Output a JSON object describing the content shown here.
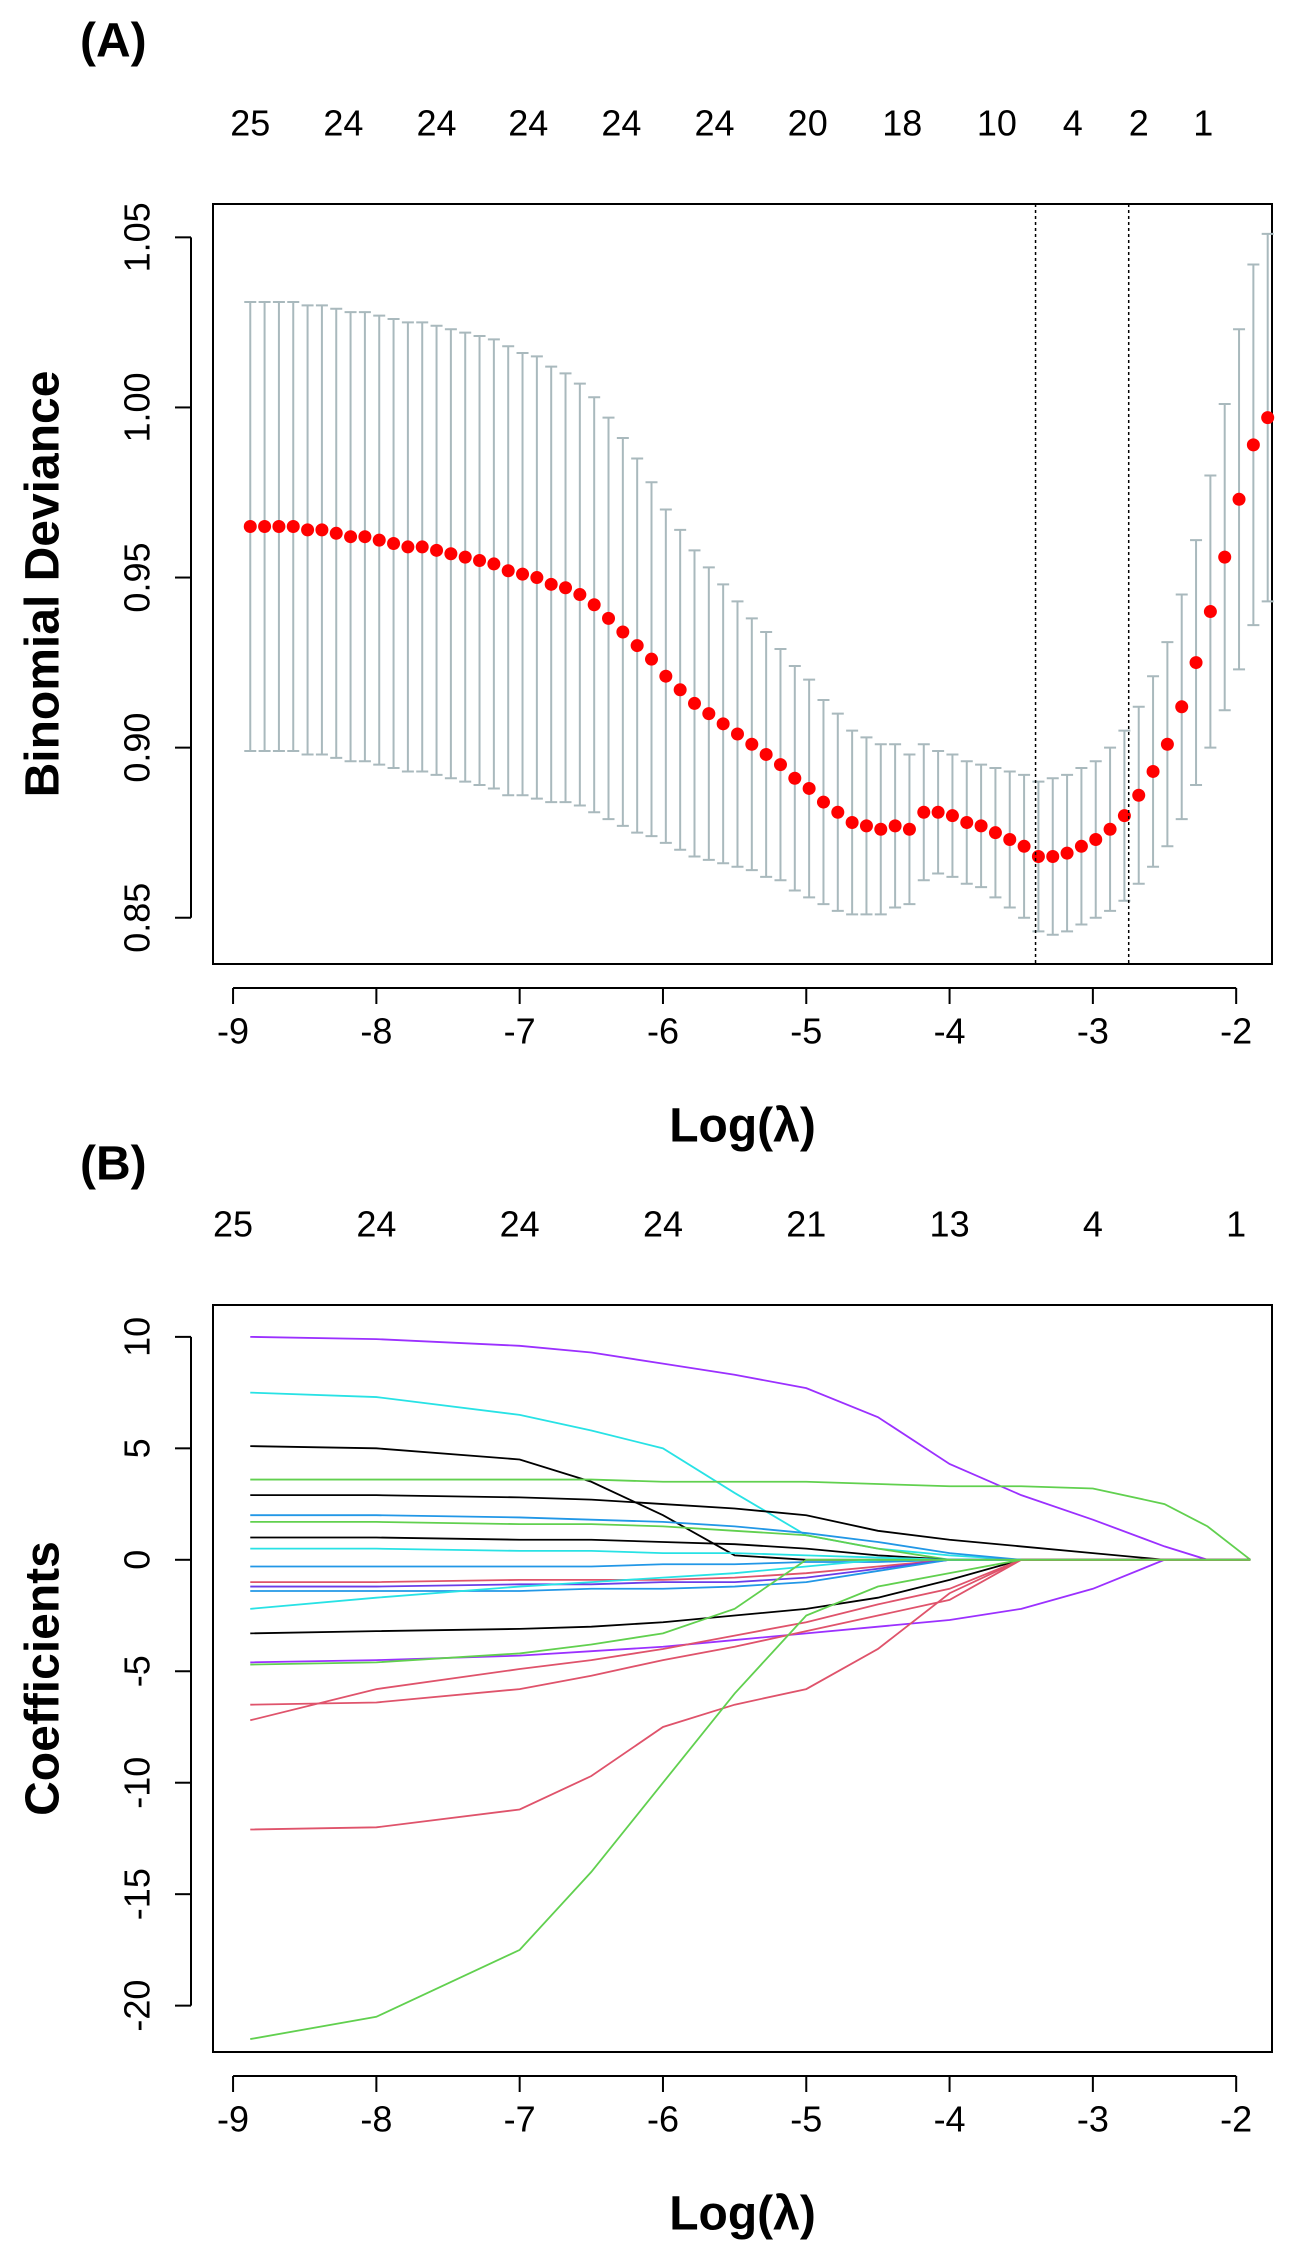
{
  "chart_data": [
    {
      "type": "errorbar",
      "panel_label": "(A)",
      "xlabel": "Log(λ)",
      "ylabel": "Binomial Deviance",
      "x": [
        -8.88,
        -8.78,
        -8.68,
        -8.58,
        -8.48,
        -8.38,
        -8.28,
        -8.18,
        -8.08,
        -7.98,
        -7.88,
        -7.78,
        -7.68,
        -7.58,
        -7.48,
        -7.38,
        -7.28,
        -7.18,
        -7.08,
        -6.98,
        -6.88,
        -6.78,
        -6.68,
        -6.58,
        -6.48,
        -6.38,
        -6.28,
        -6.18,
        -6.08,
        -5.98,
        -5.88,
        -5.78,
        -5.68,
        -5.58,
        -5.48,
        -5.38,
        -5.28,
        -5.18,
        -5.08,
        -4.98,
        -4.88,
        -4.78,
        -4.68,
        -4.58,
        -4.48,
        -4.38,
        -4.28,
        -4.18,
        -4.08,
        -3.98,
        -3.88,
        -3.78,
        -3.68,
        -3.58,
        -3.48,
        -3.38,
        -3.28,
        -3.18,
        -3.08,
        -2.98,
        -2.88,
        -2.78,
        -2.68,
        -2.58,
        -2.48,
        -2.38,
        -2.28,
        -2.18,
        -2.08,
        -1.98,
        -1.88,
        -1.78
      ],
      "values": [
        0.965,
        0.965,
        0.965,
        0.965,
        0.964,
        0.964,
        0.963,
        0.962,
        0.962,
        0.961,
        0.96,
        0.959,
        0.959,
        0.958,
        0.957,
        0.956,
        0.955,
        0.954,
        0.952,
        0.951,
        0.95,
        0.948,
        0.947,
        0.945,
        0.942,
        0.938,
        0.934,
        0.93,
        0.926,
        0.921,
        0.917,
        0.913,
        0.91,
        0.907,
        0.904,
        0.901,
        0.898,
        0.895,
        0.891,
        0.888,
        0.884,
        0.881,
        0.878,
        0.877,
        0.876,
        0.877,
        0.876,
        0.881,
        0.881,
        0.88,
        0.878,
        0.877,
        0.875,
        0.873,
        0.871,
        0.868,
        0.868,
        0.869,
        0.871,
        0.873,
        0.876,
        0.88,
        0.886,
        0.893,
        0.901,
        0.912,
        0.925,
        0.94,
        0.956,
        0.973,
        0.989,
        0.997
      ],
      "errors": [
        0.066,
        0.066,
        0.066,
        0.066,
        0.066,
        0.066,
        0.066,
        0.066,
        0.066,
        0.066,
        0.066,
        0.066,
        0.066,
        0.066,
        0.066,
        0.066,
        0.066,
        0.066,
        0.066,
        0.065,
        0.065,
        0.064,
        0.063,
        0.062,
        0.061,
        0.059,
        0.057,
        0.055,
        0.052,
        0.049,
        0.047,
        0.045,
        0.043,
        0.041,
        0.039,
        0.037,
        0.036,
        0.034,
        0.033,
        0.032,
        0.03,
        0.029,
        0.027,
        0.026,
        0.025,
        0.024,
        0.022,
        0.02,
        0.018,
        0.018,
        0.018,
        0.018,
        0.019,
        0.02,
        0.021,
        0.022,
        0.023,
        0.023,
        0.023,
        0.023,
        0.024,
        0.025,
        0.026,
        0.028,
        0.03,
        0.033,
        0.036,
        0.04,
        0.045,
        0.05,
        0.053,
        0.054
      ],
      "color": "#ff0000",
      "error_color": "#a9b9bd",
      "vlines": [
        -3.4,
        -2.75
      ],
      "xlim": [
        -9.14,
        -1.75
      ],
      "xticks": [
        -9,
        -8,
        -7,
        -6,
        -5,
        -4,
        -3,
        -2
      ],
      "ylim": [
        0.8364,
        1.0598
      ],
      "yticks": [
        0.85,
        {
          "value": 0.9,
          "label": "0.90"
        },
        0.95,
        {
          "value": 1.0,
          "label": "1.00"
        },
        1.05
      ],
      "top_ticks": [
        {
          "value": -8.88,
          "label": "25"
        },
        {
          "value": -8.23,
          "label": "24"
        },
        {
          "value": -7.58,
          "label": "24"
        },
        {
          "value": -6.94,
          "label": "24"
        },
        {
          "value": -6.29,
          "label": "24"
        },
        {
          "value": -5.64,
          "label": "24"
        },
        {
          "value": -4.99,
          "label": "20"
        },
        {
          "value": -4.33,
          "label": "18"
        },
        {
          "value": -3.67,
          "label": "10"
        },
        {
          "value": -3.14,
          "label": "4"
        },
        {
          "value": -2.68,
          "label": "2"
        },
        {
          "value": -2.23,
          "label": "1"
        }
      ]
    },
    {
      "type": "line",
      "panel_label": "(B)",
      "xlabel": "Log(λ)",
      "ylabel": "Coefficients",
      "x": [
        -8.88,
        -8,
        -7,
        -6.5,
        -6,
        -5.5,
        -5,
        -4.5,
        -4,
        -3.5,
        -3,
        -2.5,
        -2.2,
        -1.9
      ],
      "series": [
        {
          "color": "#9b30ff",
          "values": [
            10,
            9.9,
            9.6,
            9.3,
            8.8,
            8.3,
            7.7,
            6.4,
            4.3,
            2.9,
            1.8,
            0.6,
            0,
            0
          ]
        },
        {
          "color": "#28e2e5",
          "values": [
            7.5,
            7.3,
            6.5,
            5.8,
            5,
            3,
            1.1,
            0.5,
            0.2,
            0,
            0,
            0,
            0,
            0
          ]
        },
        {
          "color": "#000000",
          "values": [
            5.1,
            5,
            4.5,
            3.5,
            2,
            0.2,
            0,
            0,
            0,
            0,
            0,
            0,
            0,
            0
          ]
        },
        {
          "color": "#61d04f",
          "values": [
            3.6,
            3.6,
            3.6,
            3.6,
            3.5,
            3.5,
            3.5,
            3.4,
            3.3,
            3.3,
            3.2,
            2.5,
            1.5,
            0
          ]
        },
        {
          "color": "#000000",
          "values": [
            2.9,
            2.9,
            2.8,
            2.7,
            2.5,
            2.3,
            2,
            1.3,
            0.9,
            0.6,
            0.3,
            0,
            0,
            0
          ]
        },
        {
          "color": "#2297e6",
          "values": [
            2,
            2,
            1.9,
            1.8,
            1.7,
            1.5,
            1.2,
            0.8,
            0.3,
            0,
            0,
            0,
            0,
            0
          ]
        },
        {
          "color": "#61d04f",
          "values": [
            1.7,
            1.7,
            1.6,
            1.6,
            1.5,
            1.3,
            1.1,
            0.5,
            0,
            0,
            0,
            0,
            0,
            0
          ]
        },
        {
          "color": "#000000",
          "values": [
            1,
            1,
            0.9,
            0.9,
            0.8,
            0.7,
            0.5,
            0.2,
            0,
            0,
            0,
            0,
            0,
            0
          ]
        },
        {
          "color": "#28e2e5",
          "values": [
            0.5,
            0.5,
            0.4,
            0.4,
            0.3,
            0.3,
            0.2,
            0.1,
            0,
            0,
            0,
            0,
            0,
            0
          ]
        },
        {
          "color": "#2297e6",
          "values": [
            -0.3,
            -0.3,
            -0.3,
            -0.3,
            -0.2,
            -0.2,
            -0.1,
            -0.1,
            0,
            0,
            0,
            0,
            0,
            0
          ]
        },
        {
          "color": "#df536b",
          "values": [
            -1,
            -1,
            -0.9,
            -0.9,
            -0.9,
            -0.8,
            -0.6,
            -0.3,
            0,
            0,
            0,
            0,
            0,
            0
          ]
        },
        {
          "color": "#6a3de8",
          "values": [
            -1.2,
            -1.2,
            -1.1,
            -1.1,
            -1,
            -1,
            -0.8,
            -0.4,
            0,
            0,
            0,
            0,
            0,
            0
          ]
        },
        {
          "color": "#2297e6",
          "values": [
            -1.4,
            -1.4,
            -1.4,
            -1.3,
            -1.3,
            -1.2,
            -1,
            -0.5,
            0,
            0,
            0,
            0,
            0,
            0
          ]
        },
        {
          "color": "#28e2e5",
          "values": [
            -2.2,
            -1.7,
            -1.2,
            -1,
            -0.8,
            -0.6,
            -0.3,
            0,
            0,
            0,
            0,
            0,
            0,
            0
          ]
        },
        {
          "color": "#000000",
          "values": [
            -3.3,
            -3.2,
            -3.1,
            -3,
            -2.8,
            -2.5,
            -2.2,
            -1.7,
            -0.9,
            0,
            0,
            0,
            0,
            0
          ]
        },
        {
          "color": "#9b30ff",
          "values": [
            -4.6,
            -4.5,
            -4.3,
            -4.1,
            -3.9,
            -3.6,
            -3.3,
            -3,
            -2.7,
            -2.2,
            -1.3,
            0,
            0,
            0
          ]
        },
        {
          "color": "#61d04f",
          "values": [
            -4.7,
            -4.6,
            -4.2,
            -3.8,
            -3.3,
            -2.2,
            0,
            0,
            0,
            0,
            0,
            0,
            0,
            0
          ]
        },
        {
          "color": "#df536b",
          "values": [
            -6.5,
            -6.4,
            -5.8,
            -5.2,
            -4.5,
            -3.9,
            -3.2,
            -2.5,
            -1.8,
            0,
            0,
            0,
            0,
            0
          ]
        },
        {
          "color": "#df536b",
          "values": [
            -7.2,
            -5.8,
            -4.9,
            -4.5,
            -4,
            -3.4,
            -2.8,
            -2,
            -1.3,
            0,
            0,
            0,
            0,
            0
          ]
        },
        {
          "color": "#df536b",
          "values": [
            -12.1,
            -12,
            -11.2,
            -9.7,
            -7.5,
            -6.5,
            -5.8,
            -4,
            -1.5,
            0,
            0,
            0,
            0,
            0
          ]
        },
        {
          "color": "#61d04f",
          "values": [
            -21.5,
            -20.5,
            -17.5,
            -14,
            -10,
            -6,
            -2.5,
            -1.2,
            -0.6,
            0,
            0,
            0,
            0,
            0
          ]
        }
      ],
      "xlim": [
        -9.14,
        -1.75
      ],
      "xticks": [
        -9,
        -8,
        -7,
        -6,
        -5,
        -4,
        -3,
        -2
      ],
      "ylim": [
        -22.08,
        11.43
      ],
      "yticks": [
        10,
        5,
        0,
        -5,
        -10,
        -15,
        -20
      ],
      "top_ticks": [
        {
          "value": -9,
          "label": "25"
        },
        {
          "value": -8,
          "label": "24"
        },
        {
          "value": -7,
          "label": "24"
        },
        {
          "value": -6,
          "label": "24"
        },
        {
          "value": -5,
          "label": "21"
        },
        {
          "value": -4,
          "label": "13"
        },
        {
          "value": -3,
          "label": "4"
        },
        {
          "value": -2,
          "label": "1"
        }
      ]
    }
  ]
}
